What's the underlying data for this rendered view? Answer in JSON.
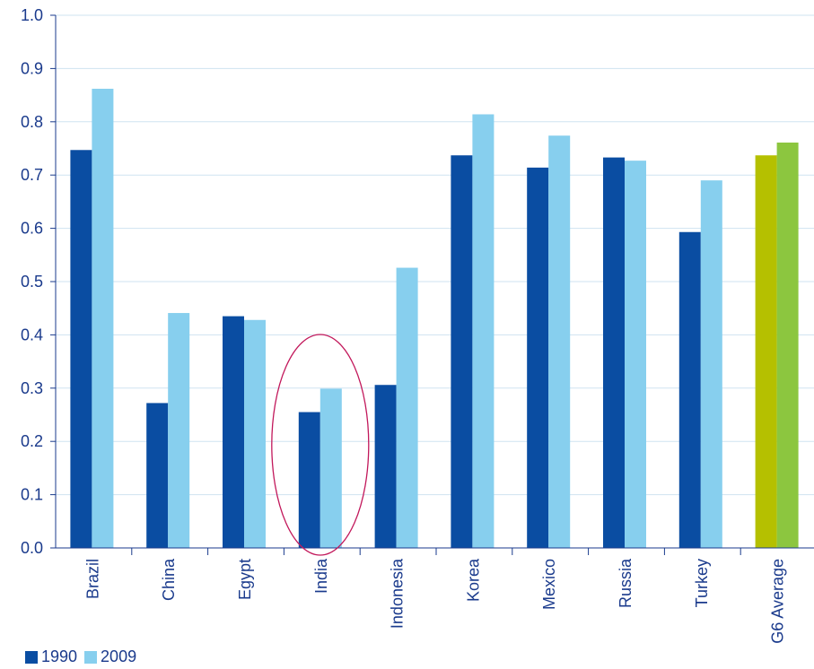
{
  "chart_data": {
    "type": "bar",
    "categories": [
      "Brazil",
      "China",
      "Egypt",
      "India",
      "Indonesia",
      "Korea",
      "Mexico",
      "Russia",
      "Turkey",
      "G6 Average"
    ],
    "series": [
      {
        "name": "1990",
        "values": [
          0.747,
          0.272,
          0.435,
          0.255,
          0.306,
          0.737,
          0.714,
          0.733,
          0.593,
          0.737
        ]
      },
      {
        "name": "2009",
        "values": [
          0.862,
          0.441,
          0.428,
          0.299,
          0.526,
          0.814,
          0.774,
          0.727,
          0.69,
          0.761
        ]
      }
    ],
    "yticks": [
      "0.0",
      "0.1",
      "0.2",
      "0.3",
      "0.4",
      "0.5",
      "0.6",
      "0.7",
      "0.8",
      "0.9",
      "1.0"
    ],
    "ylim": [
      0,
      1.0
    ],
    "grid": true,
    "legend_position": "bottom-left",
    "highlighted_category": "India",
    "colors": {
      "series_1990": "#0a4da2",
      "series_2009": "#87cfee",
      "g6_1990": "#b5c000",
      "g6_2009": "#8cc63f",
      "axis": "#1a3a8c",
      "grid": "#cfe3f1",
      "highlight_ellipse": "#c2185b"
    }
  }
}
